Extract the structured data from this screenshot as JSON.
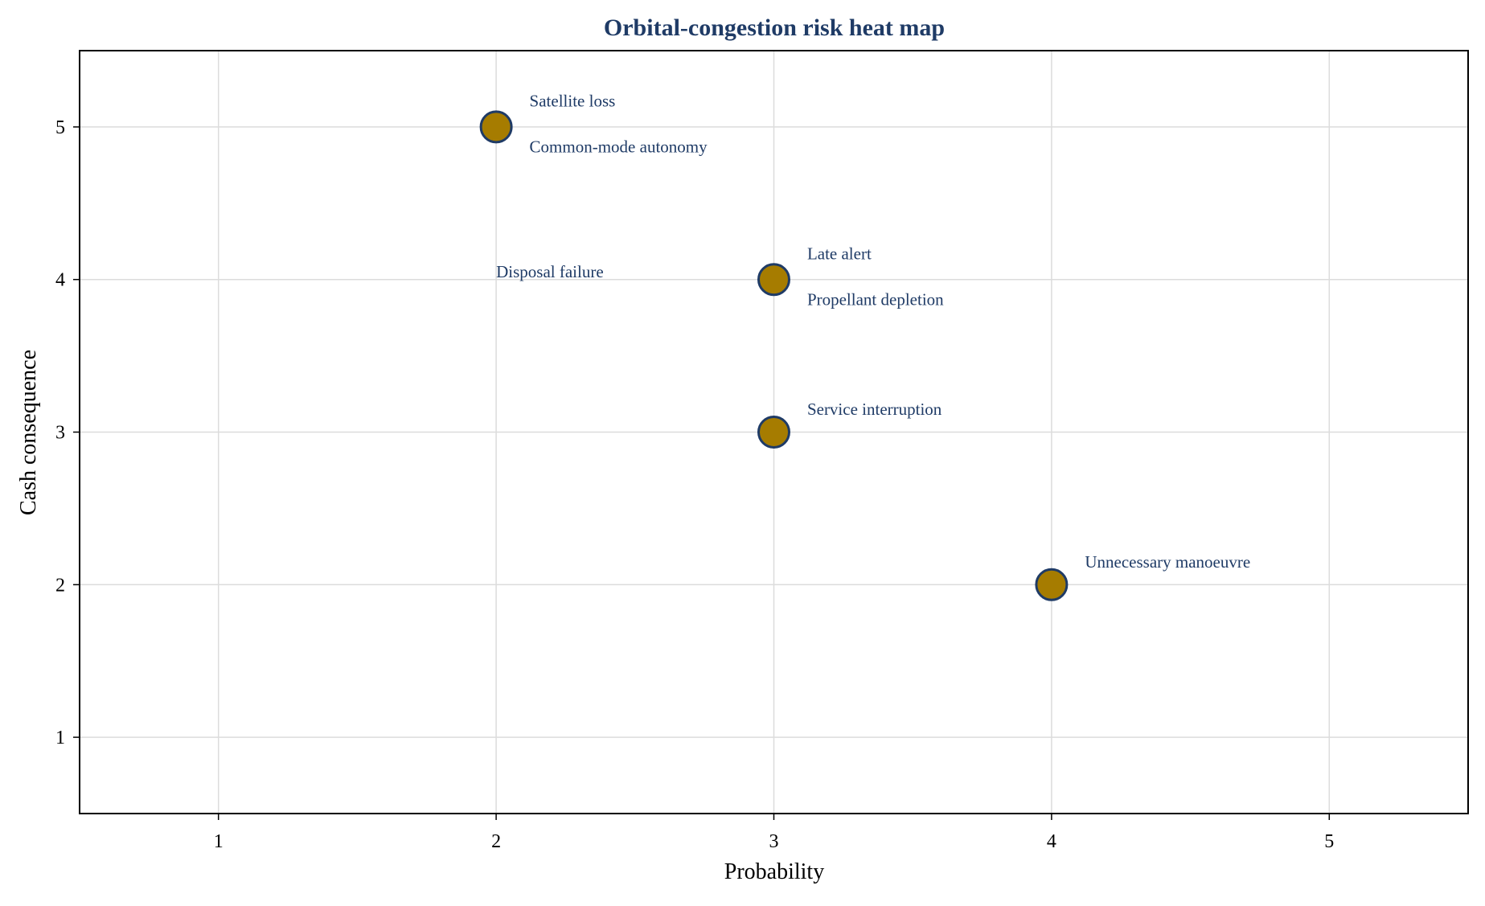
{
  "chart_data": {
    "type": "scatter",
    "title": "Orbital-congestion risk heat map",
    "xlabel": "Probability",
    "ylabel": "Cash consequence",
    "xlim": [
      0.5,
      5.5
    ],
    "ylim": [
      0.5,
      5.5
    ],
    "xticks": [
      1,
      2,
      3,
      4,
      5
    ],
    "yticks": [
      1,
      2,
      3,
      4,
      5
    ],
    "grid": true,
    "points": [
      {
        "x": 2,
        "y": 5
      },
      {
        "x": 3,
        "y": 4
      },
      {
        "x": 3,
        "y": 3
      },
      {
        "x": 4,
        "y": 2
      }
    ],
    "annotations": [
      {
        "text": "Satellite loss",
        "x": 2.12,
        "y": 5.17
      },
      {
        "text": "Common-mode autonomy",
        "x": 2.12,
        "y": 4.87
      },
      {
        "text": "Disposal failure",
        "x": 2.0,
        "y": 4.05
      },
      {
        "text": "Late alert",
        "x": 3.12,
        "y": 4.17
      },
      {
        "text": "Propellant depletion",
        "x": 3.12,
        "y": 3.87
      },
      {
        "text": "Service interruption",
        "x": 3.12,
        "y": 3.15
      },
      {
        "text": "Unnecessary manoeuvre",
        "x": 4.12,
        "y": 2.15
      }
    ],
    "colors": {
      "title": "#1f3b66",
      "annotation": "#1f3b66",
      "marker_fill": "#a67c00",
      "marker_edge": "#1f3b66",
      "grid": "#dcdcdc"
    }
  }
}
